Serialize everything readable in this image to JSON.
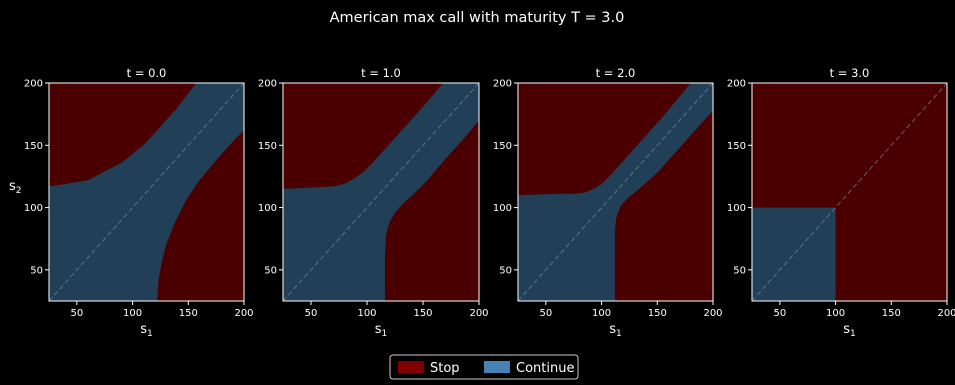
{
  "chart_data": {
    "type": "region-map",
    "suptitle": "American max call with maturity T = 3.0",
    "xlabel_base": "s",
    "xlabel_sub": "1",
    "ylabel_base": "s",
    "ylabel_sub": "2",
    "xlim": [
      25,
      200
    ],
    "ylim": [
      25,
      200
    ],
    "xticks": [
      "50",
      "100",
      "150",
      "200"
    ],
    "yticks": [
      "50",
      "100",
      "150",
      "200"
    ],
    "grid": false,
    "diagonal": "dashed",
    "legend_position": "bottom-center",
    "legend": [
      {
        "label": "Stop",
        "color": "#800000"
      },
      {
        "label": "Continue",
        "color": "#4682b4"
      }
    ],
    "colors": {
      "stop_fill": "#4a0000",
      "continue_fill": "#223f58",
      "background": "#000000",
      "frame": "#ffffff"
    },
    "panels": [
      {
        "title": "t = 0.0",
        "show_ylabel": true,
        "continue_region": [
          [
            25,
            117
          ],
          [
            40,
            119
          ],
          [
            60,
            122
          ],
          [
            75,
            129
          ],
          [
            90,
            136
          ],
          [
            100,
            143
          ],
          [
            112,
            152
          ],
          [
            125,
            165
          ],
          [
            140,
            180
          ],
          [
            157,
            200
          ],
          [
            200,
            200
          ],
          [
            200,
            162
          ],
          [
            190,
            153
          ],
          [
            175,
            138
          ],
          [
            160,
            122
          ],
          [
            148,
            106
          ],
          [
            138,
            88
          ],
          [
            130,
            70
          ],
          [
            126,
            55
          ],
          [
            123,
            40
          ],
          [
            122,
            25
          ],
          [
            25,
            25
          ]
        ]
      },
      {
        "title": "t = 1.0",
        "show_ylabel": false,
        "continue_region": [
          [
            25,
            115
          ],
          [
            50,
            116
          ],
          [
            70,
            117
          ],
          [
            80,
            119
          ],
          [
            88,
            123
          ],
          [
            96,
            128
          ],
          [
            104,
            135
          ],
          [
            112,
            143
          ],
          [
            122,
            153
          ],
          [
            135,
            166
          ],
          [
            150,
            181
          ],
          [
            168,
            200
          ],
          [
            200,
            200
          ],
          [
            200,
            170
          ],
          [
            188,
            157
          ],
          [
            170,
            139
          ],
          [
            155,
            123
          ],
          [
            143,
            112
          ],
          [
            133,
            104
          ],
          [
            125,
            96
          ],
          [
            120,
            88
          ],
          [
            117,
            78
          ],
          [
            116,
            60
          ],
          [
            116,
            25
          ],
          [
            25,
            25
          ]
        ]
      },
      {
        "title": "t = 2.0",
        "show_ylabel": false,
        "continue_region": [
          [
            25,
            110
          ],
          [
            60,
            111
          ],
          [
            75,
            111
          ],
          [
            85,
            112
          ],
          [
            93,
            115
          ],
          [
            100,
            119
          ],
          [
            108,
            126
          ],
          [
            116,
            134
          ],
          [
            126,
            144
          ],
          [
            140,
            158
          ],
          [
            155,
            173
          ],
          [
            180,
            200
          ],
          [
            200,
            200
          ],
          [
            200,
            178
          ],
          [
            185,
            163
          ],
          [
            170,
            148
          ],
          [
            150,
            128
          ],
          [
            135,
            116
          ],
          [
            124,
            108
          ],
          [
            117,
            101
          ],
          [
            113,
            92
          ],
          [
            112,
            80
          ],
          [
            112,
            25
          ],
          [
            25,
            25
          ]
        ]
      },
      {
        "title": "t = 3.0",
        "show_ylabel": false,
        "continue_region": [
          [
            25,
            25
          ],
          [
            25,
            100
          ],
          [
            100,
            100
          ],
          [
            100,
            25
          ]
        ]
      }
    ]
  }
}
